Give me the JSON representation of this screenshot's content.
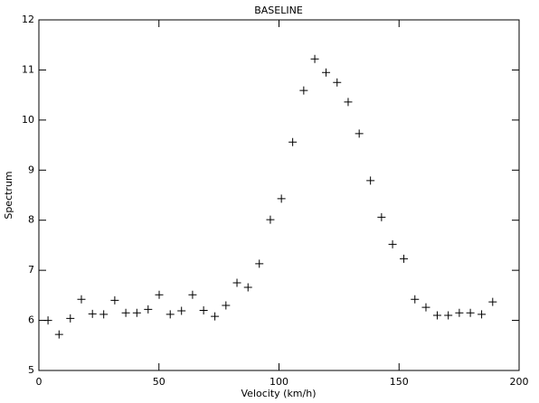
{
  "chart_data": {
    "type": "scatter",
    "title": "BASELINE",
    "xlabel": "Velocity (km/h)",
    "ylabel": "Spectrum",
    "x": [
      3.8,
      8.4,
      13.1,
      17.7,
      22.3,
      27.0,
      31.6,
      36.2,
      40.8,
      45.5,
      50.1,
      54.7,
      59.4,
      64.0,
      68.6,
      73.3,
      77.9,
      82.5,
      87.1,
      91.8,
      96.4,
      101.0,
      105.7,
      110.3,
      114.9,
      119.6,
      124.2,
      128.8,
      133.4,
      138.1,
      142.7,
      147.3,
      152.0,
      156.6,
      161.2,
      165.9,
      170.5,
      175.1,
      179.7,
      184.4,
      189.0
    ],
    "values": [
      6.0,
      5.72,
      6.04,
      6.42,
      6.13,
      6.12,
      6.4,
      6.15,
      6.15,
      6.22,
      6.51,
      6.12,
      6.19,
      6.51,
      6.2,
      6.08,
      6.3,
      6.75,
      6.66,
      7.13,
      8.01,
      8.43,
      9.56,
      10.59,
      11.22,
      10.95,
      10.75,
      10.36,
      9.73,
      8.79,
      8.06,
      7.52,
      7.23,
      6.42,
      6.26,
      6.1,
      6.1,
      6.15,
      6.15,
      6.12,
      6.37
    ],
    "color": "#000000",
    "marker": "+",
    "xlim": [
      0,
      200
    ],
    "xticks": [
      0,
      50,
      100,
      150,
      200
    ],
    "ylim": [
      5,
      12
    ],
    "yticks": [
      5,
      6,
      7,
      8,
      9,
      10,
      11,
      12
    ]
  }
}
